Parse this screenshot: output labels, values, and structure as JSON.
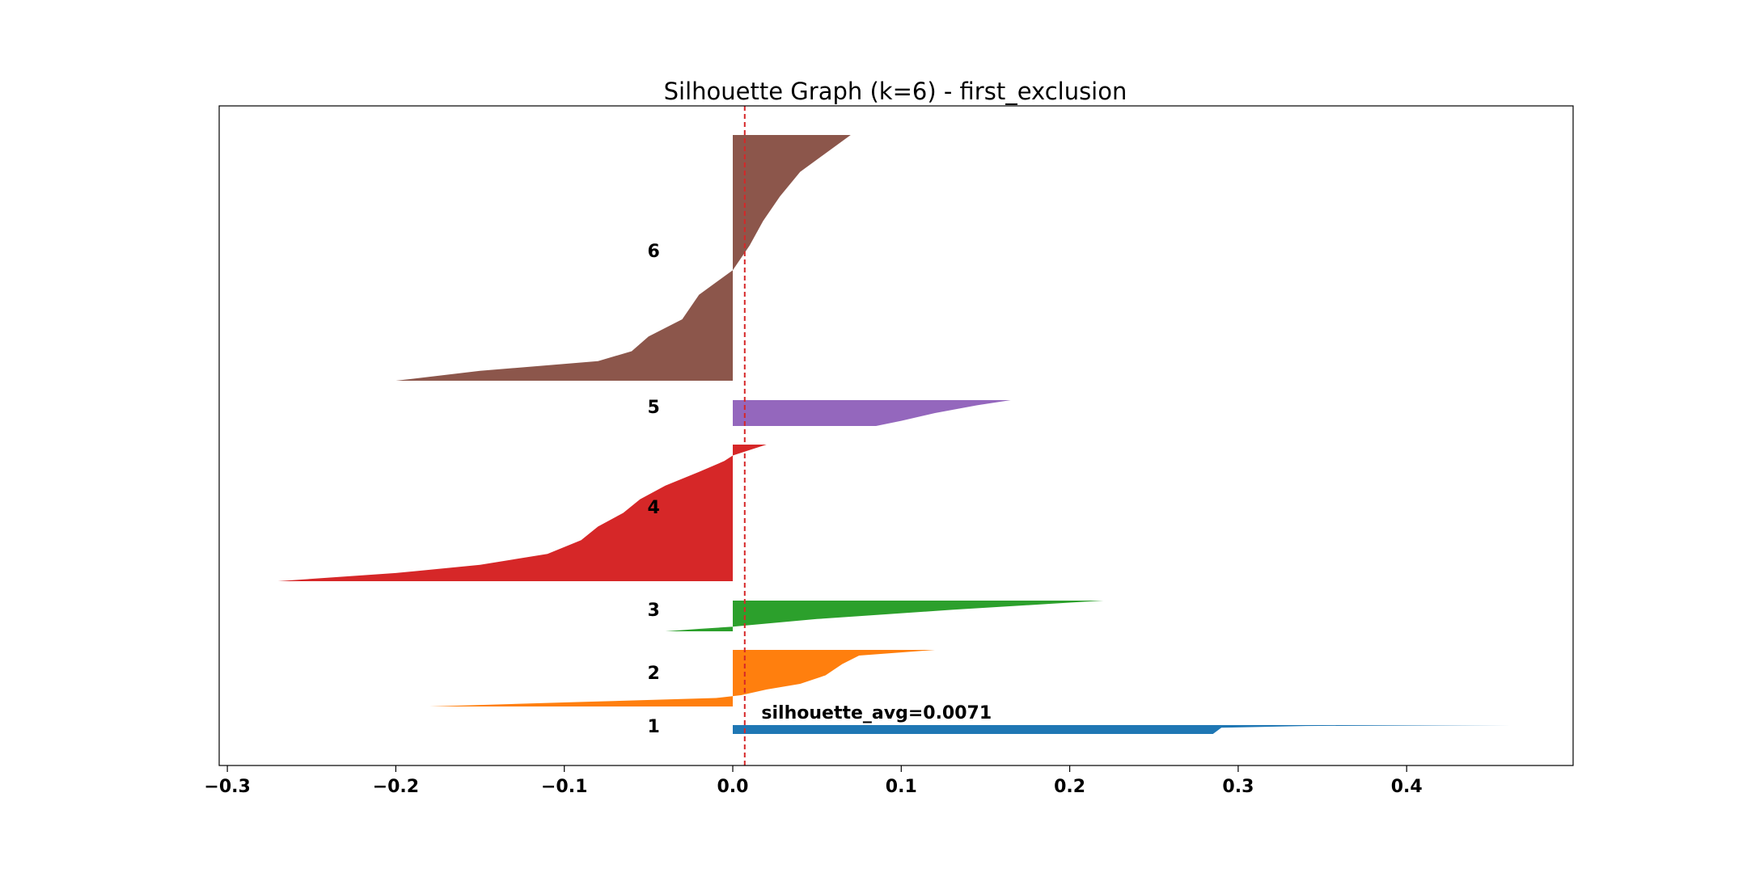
{
  "chart_data": {
    "type": "silhouette",
    "title": "Silhouette Graph (k=6) - first_exclusion",
    "xlabel": "",
    "ylabel": "",
    "xlim": [
      -0.3,
      0.5
    ],
    "x_ticks": [
      -0.3,
      -0.2,
      -0.1,
      0.0,
      0.1,
      0.2,
      0.3,
      0.4
    ],
    "x_tick_labels": [
      "−0.3",
      "−0.2",
      "−0.1",
      "0.0",
      "0.1",
      "0.2",
      "0.3",
      "0.4"
    ],
    "grid": false,
    "average_line": {
      "value": 0.0071,
      "label": "silhouette_avg=0.0071",
      "color": "#d62728"
    },
    "clusters": [
      {
        "label": "1",
        "color": "#1f77b4",
        "profile": [
          [
            0.0,
            0.462
          ],
          [
            0.1,
            0.34
          ],
          [
            0.3,
            0.29
          ],
          [
            1.0,
            0.285
          ]
        ]
      },
      {
        "label": "2",
        "color": "#ff7f0e",
        "profile": [
          [
            0.0,
            0.12
          ],
          [
            0.1,
            0.075
          ],
          [
            0.25,
            0.065
          ],
          [
            0.45,
            0.055
          ],
          [
            0.6,
            0.04
          ],
          [
            0.7,
            0.02
          ],
          [
            0.8,
            0.005
          ],
          [
            0.85,
            -0.01
          ],
          [
            0.92,
            -0.09
          ],
          [
            1.0,
            -0.18
          ]
        ]
      },
      {
        "label": "3",
        "color": "#2ca02c",
        "profile": [
          [
            0.0,
            0.22
          ],
          [
            0.1,
            0.19
          ],
          [
            0.3,
            0.13
          ],
          [
            0.6,
            0.05
          ],
          [
            0.85,
            0.0
          ],
          [
            0.92,
            -0.02
          ],
          [
            1.0,
            -0.04
          ]
        ]
      },
      {
        "label": "4",
        "color": "#d62728",
        "profile": [
          [
            0.0,
            0.02
          ],
          [
            0.04,
            0.01
          ],
          [
            0.08,
            0.0
          ],
          [
            0.12,
            -0.005
          ],
          [
            0.2,
            -0.02
          ],
          [
            0.3,
            -0.04
          ],
          [
            0.4,
            -0.055
          ],
          [
            0.5,
            -0.065
          ],
          [
            0.6,
            -0.08
          ],
          [
            0.7,
            -0.09
          ],
          [
            0.8,
            -0.11
          ],
          [
            0.88,
            -0.15
          ],
          [
            0.94,
            -0.2
          ],
          [
            1.0,
            -0.27
          ]
        ]
      },
      {
        "label": "5",
        "color": "#9467bd",
        "profile": [
          [
            0.0,
            0.165
          ],
          [
            0.2,
            0.145
          ],
          [
            0.5,
            0.12
          ],
          [
            0.8,
            0.1
          ],
          [
            1.0,
            0.085
          ]
        ]
      },
      {
        "label": "6",
        "color": "#8c564b",
        "profile": [
          [
            0.0,
            0.07
          ],
          [
            0.06,
            0.058
          ],
          [
            0.15,
            0.04
          ],
          [
            0.25,
            0.028
          ],
          [
            0.35,
            0.018
          ],
          [
            0.45,
            0.01
          ],
          [
            0.55,
            0.0
          ],
          [
            0.6,
            -0.01
          ],
          [
            0.65,
            -0.02
          ],
          [
            0.75,
            -0.03
          ],
          [
            0.82,
            -0.05
          ],
          [
            0.88,
            -0.06
          ],
          [
            0.92,
            -0.08
          ],
          [
            0.96,
            -0.15
          ],
          [
            1.0,
            -0.2
          ]
        ]
      }
    ]
  }
}
